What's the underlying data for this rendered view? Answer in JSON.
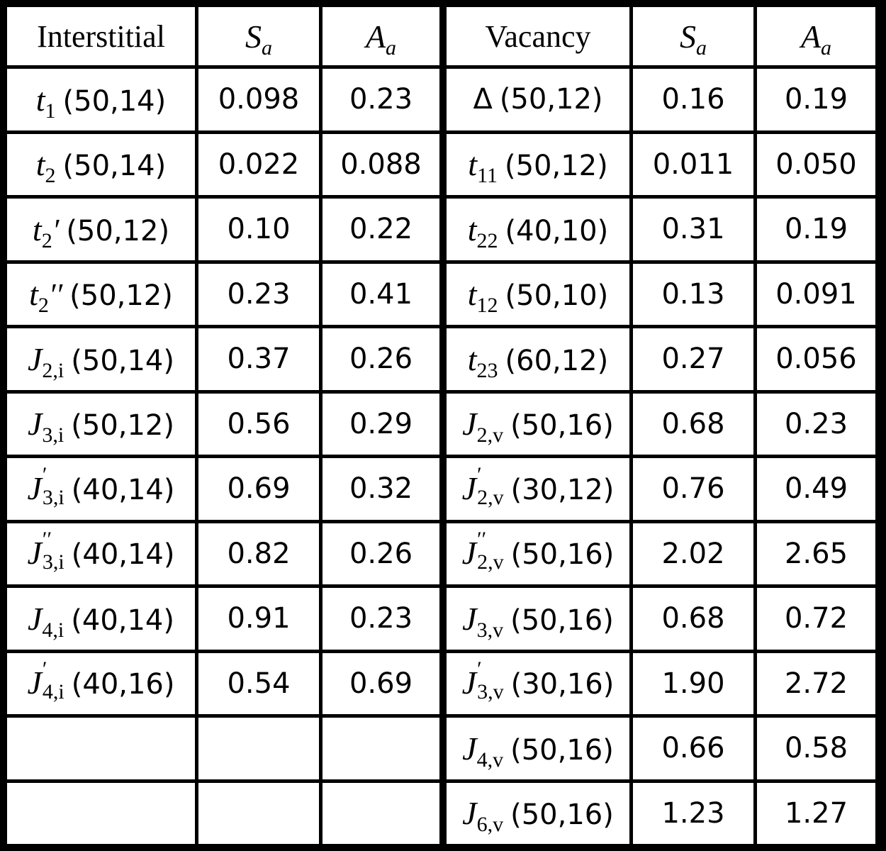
{
  "table": {
    "header": [
      {
        "text": "Interstitial"
      },
      {
        "base": "S",
        "sub": "a"
      },
      {
        "base": "A",
        "sub": "a"
      },
      {
        "text": "Vacancy"
      },
      {
        "base": "S",
        "sub": "a"
      },
      {
        "base": "A",
        "sub": "a"
      }
    ],
    "rows": [
      [
        {
          "base": "t",
          "sub": "1",
          "args": "(50,14)"
        },
        "0.098",
        "0.23",
        {
          "base": "Δ",
          "italic": false,
          "args": "(50,12)"
        },
        "0.16",
        "0.19"
      ],
      [
        {
          "base": "t",
          "sub": "2",
          "args": "(50,14)"
        },
        "0.022",
        "0.088",
        {
          "base": "t",
          "sub": "11",
          "args": "(50,12)"
        },
        "0.011",
        "0.050"
      ],
      [
        {
          "base": "t",
          "sub": "2",
          "post": "′",
          "args": "(50,12)"
        },
        "0.10",
        "0.22",
        {
          "base": "t",
          "sub": "22",
          "args": "(40,10)"
        },
        "0.31",
        "0.19"
      ],
      [
        {
          "base": "t",
          "sub": "2",
          "post": "′′",
          "args": "(50,12)"
        },
        "0.23",
        "0.41",
        {
          "base": "t",
          "sub": "12",
          "args": "(50,10)"
        },
        "0.13",
        "0.091"
      ],
      [
        {
          "base": "J",
          "sub": "2,i",
          "args": "(50,14)"
        },
        "0.37",
        "0.26",
        {
          "base": "t",
          "sub": "23",
          "args": "(60,12)"
        },
        "0.27",
        "0.056"
      ],
      [
        {
          "base": "J",
          "sub": "3,i",
          "args": "(50,12)"
        },
        "0.56",
        "0.29",
        {
          "base": "J",
          "sub": "2,v",
          "args": "(50,16)"
        },
        "0.68",
        "0.23"
      ],
      [
        {
          "base": "J",
          "sup": "′",
          "sub": "3,i",
          "args": "(40,14)"
        },
        "0.69",
        "0.32",
        {
          "base": "J",
          "sup": "′",
          "sub": "2,v",
          "args": "(30,12)"
        },
        "0.76",
        "0.49"
      ],
      [
        {
          "base": "J",
          "sup": "′′",
          "sub": "3,i",
          "args": "(40,14)"
        },
        "0.82",
        "0.26",
        {
          "base": "J",
          "sup": "′′",
          "sub": "2,v",
          "args": "(50,16)"
        },
        "2.02",
        "2.65"
      ],
      [
        {
          "base": "J",
          "sub": "4,i",
          "args": "(40,14)"
        },
        "0.91",
        "0.23",
        {
          "base": "J",
          "sub": "3,v",
          "args": "(50,16)"
        },
        "0.68",
        "0.72"
      ],
      [
        {
          "base": "J",
          "sup": "′",
          "sub": "4,i",
          "args": "(40,16)"
        },
        "0.54",
        "0.69",
        {
          "base": "J",
          "sup": "′",
          "sub": "3,v",
          "args": "(30,16)"
        },
        "1.90",
        "2.72"
      ],
      [
        null,
        null,
        null,
        {
          "base": "J",
          "sub": "4,v",
          "args": "(50,16)"
        },
        "0.66",
        "0.58"
      ],
      [
        null,
        null,
        null,
        {
          "base": "J",
          "sub": "6,v",
          "args": "(50,16)"
        },
        "1.23",
        "1.27"
      ]
    ]
  }
}
